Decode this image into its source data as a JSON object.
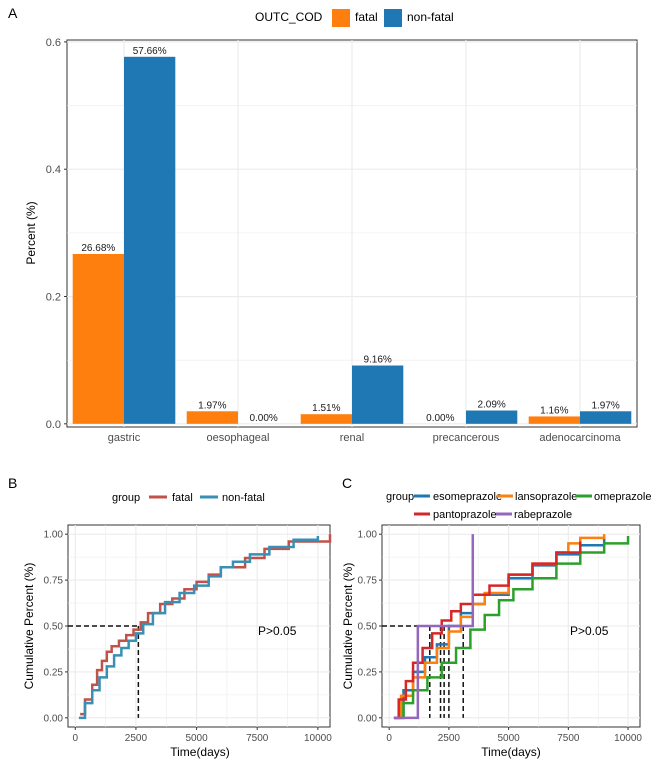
{
  "panel_labels": {
    "a": "A",
    "b": "B",
    "c": "C"
  },
  "colors": {
    "fatal": "#ff7f0e",
    "non_fatal": "#1f77b4",
    "km_fatal": "#c1524b",
    "km_nonfatal": "#3a8fb5",
    "esomeprazole": "#1f77b4",
    "lansoprazole": "#ff7f0e",
    "omeprazole": "#2ca02c",
    "pantoprazole": "#d62728",
    "rabeprazole": "#9467bd",
    "panel_bg": "#ffffff",
    "grid": "#ebebeb"
  },
  "chart_data": [
    {
      "type": "bar",
      "panel": "A",
      "legend_title": "OUTC_COD",
      "legend_position": "top",
      "categories": [
        "gastric",
        "oesophageal",
        "renal",
        "precancerous",
        "adenocarcinoma"
      ],
      "series": [
        {
          "name": "fatal",
          "values": [
            0.2668,
            0.0197,
            0.0151,
            0.0,
            0.0116
          ],
          "labels": [
            "26.68%",
            "1.97%",
            "1.51%",
            "0.00%",
            "1.16%"
          ]
        },
        {
          "name": "non-fatal",
          "values": [
            0.5766,
            0.0,
            0.0916,
            0.0209,
            0.0197
          ],
          "labels": [
            "57.66%",
            "0.00%",
            "9.16%",
            "2.09%",
            "1.97%"
          ]
        }
      ],
      "xlabel": "",
      "ylabel": "Percent (%)",
      "yticks": [
        0.0,
        0.2,
        0.4,
        0.6
      ],
      "ytick_labels": [
        "0.0",
        "0.2",
        "0.4",
        "0.6"
      ],
      "ylim": [
        -0.005,
        0.603
      ],
      "grid": true
    },
    {
      "type": "line",
      "panel": "B",
      "legend_title": "group",
      "legend_position": "top",
      "xlabel": "Time(days)",
      "ylabel": "Cumulative Percent (%)",
      "xlim": [
        -300,
        10500
      ],
      "ylim": [
        -0.05,
        1.05
      ],
      "xticks": [
        0,
        2500,
        5000,
        7500,
        10000
      ],
      "xtick_labels": [
        "0",
        "2500",
        "5000",
        "7500",
        "10000"
      ],
      "yticks": [
        0.0,
        0.25,
        0.5,
        0.75,
        1.0
      ],
      "ytick_labels": [
        "0.00",
        "0.25",
        "0.50",
        "0.75",
        "1.00"
      ],
      "annotation": "P>0.05",
      "median_lines": [
        {
          "x": 2600,
          "y": 0.5
        }
      ],
      "series": [
        {
          "name": "fatal",
          "x": [
            200,
            400,
            700,
            900,
            1100,
            1300,
            1500,
            1800,
            2100,
            2400,
            2700,
            3000,
            3500,
            4000,
            4500,
            5000,
            5500,
            6000,
            7000,
            7800,
            8800,
            10500
          ],
          "y": [
            0.02,
            0.1,
            0.18,
            0.26,
            0.31,
            0.36,
            0.39,
            0.42,
            0.45,
            0.48,
            0.52,
            0.57,
            0.62,
            0.65,
            0.7,
            0.74,
            0.78,
            0.82,
            0.87,
            0.92,
            0.96,
            1.0
          ]
        },
        {
          "name": "non-fatal",
          "x": [
            150,
            400,
            700,
            1000,
            1300,
            1600,
            1900,
            2200,
            2500,
            2800,
            3200,
            3700,
            4300,
            4900,
            5500,
            6000,
            6500,
            7200,
            8000,
            9000,
            10000
          ],
          "y": [
            0.0,
            0.08,
            0.15,
            0.22,
            0.28,
            0.34,
            0.38,
            0.42,
            0.46,
            0.51,
            0.57,
            0.63,
            0.68,
            0.72,
            0.77,
            0.82,
            0.85,
            0.89,
            0.93,
            0.97,
            0.99
          ]
        }
      ]
    },
    {
      "type": "line",
      "panel": "C",
      "legend_title": "group",
      "legend_position": "top",
      "xlabel": "Time(days)",
      "ylabel": "Cumulative Percent (%)",
      "xlim": [
        -300,
        10500
      ],
      "ylim": [
        -0.05,
        1.05
      ],
      "xticks": [
        0,
        2500,
        5000,
        7500,
        10000
      ],
      "xtick_labels": [
        "0",
        "2500",
        "5000",
        "7500",
        "10000"
      ],
      "yticks": [
        0.0,
        0.25,
        0.5,
        0.75,
        1.0
      ],
      "ytick_labels": [
        "0.00",
        "0.25",
        "0.50",
        "0.75",
        "1.00"
      ],
      "annotation": "P>0.05",
      "median_lines": [
        {
          "x": 1700,
          "y": 0.5
        },
        {
          "x": 2150,
          "y": 0.5
        },
        {
          "x": 2300,
          "y": 0.5
        },
        {
          "x": 2500,
          "y": 0.5
        },
        {
          "x": 3100,
          "y": 0.5
        }
      ],
      "series": [
        {
          "name": "esomeprazole",
          "x": [
            200,
            600,
            1000,
            1500,
            2000,
            2500,
            3000,
            3500,
            4000,
            5000,
            6000,
            7000,
            8000,
            9000
          ],
          "y": [
            0.0,
            0.15,
            0.25,
            0.33,
            0.4,
            0.5,
            0.57,
            0.62,
            0.67,
            0.76,
            0.83,
            0.89,
            0.94,
            0.98
          ]
        },
        {
          "name": "lansoprazole",
          "x": [
            200,
            500,
            1000,
            1500,
            2000,
            2500,
            3000,
            3500,
            4000,
            5000,
            6000,
            7000,
            7500,
            8000,
            9000
          ],
          "y": [
            0.0,
            0.12,
            0.22,
            0.3,
            0.38,
            0.47,
            0.55,
            0.62,
            0.68,
            0.78,
            0.84,
            0.9,
            0.95,
            0.98,
            1.0
          ]
        },
        {
          "name": "omeprazole",
          "x": [
            200,
            600,
            1000,
            1600,
            2200,
            2800,
            3400,
            4000,
            4600,
            5200,
            6000,
            7000,
            8000,
            9000,
            10000
          ],
          "y": [
            0.0,
            0.08,
            0.15,
            0.22,
            0.3,
            0.38,
            0.48,
            0.56,
            0.64,
            0.7,
            0.76,
            0.84,
            0.9,
            0.95,
            0.99
          ]
        },
        {
          "name": "pantoprazole",
          "x": [
            200,
            400,
            700,
            1000,
            1400,
            1800,
            2200,
            2600,
            3000,
            3500,
            4200,
            5000,
            6000,
            7000,
            8000
          ],
          "y": [
            0.0,
            0.1,
            0.2,
            0.3,
            0.38,
            0.46,
            0.53,
            0.58,
            0.62,
            0.67,
            0.72,
            0.78,
            0.84,
            0.9,
            0.96
          ]
        },
        {
          "name": "rabeprazole",
          "x": [
            200,
            1200,
            1200,
            3500,
            3500
          ],
          "y": [
            0.0,
            0.0,
            0.5,
            0.5,
            1.0
          ]
        }
      ]
    }
  ]
}
